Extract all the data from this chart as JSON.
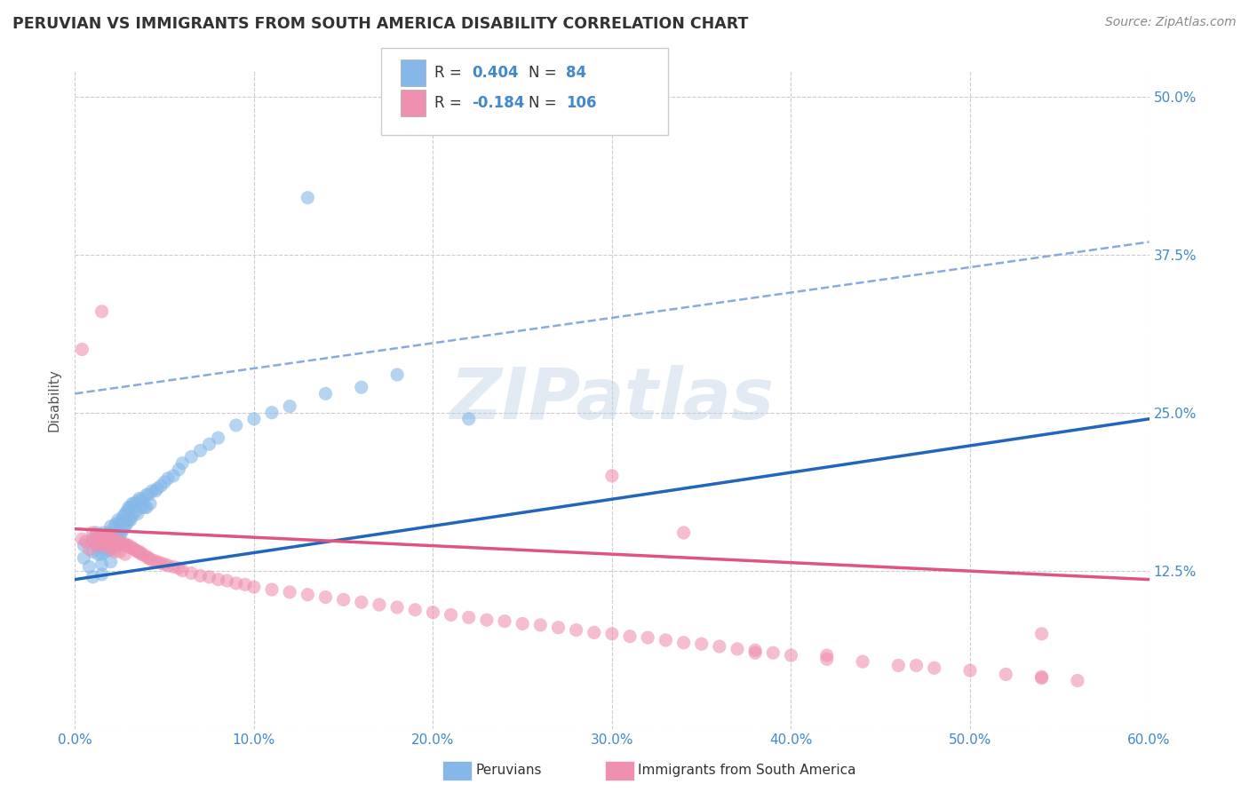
{
  "title": "PERUVIAN VS IMMIGRANTS FROM SOUTH AMERICA DISABILITY CORRELATION CHART",
  "source": "Source: ZipAtlas.com",
  "ylabel": "Disability",
  "x_min": 0.0,
  "x_max": 0.6,
  "y_min": 0.0,
  "y_max": 0.52,
  "yticks": [
    0.0,
    0.125,
    0.25,
    0.375,
    0.5
  ],
  "ytick_labels": [
    "",
    "12.5%",
    "25.0%",
    "37.5%",
    "50.0%"
  ],
  "xticks": [
    0.0,
    0.1,
    0.2,
    0.3,
    0.4,
    0.5,
    0.6
  ],
  "xtick_labels": [
    "0.0%",
    "10.0%",
    "20.0%",
    "30.0%",
    "40.0%",
    "50.0%",
    "60.0%"
  ],
  "legend_bottom": [
    {
      "label": "Peruvians",
      "color": "#85b8e8"
    },
    {
      "label": "Immigrants from South America",
      "color": "#f090b0"
    }
  ],
  "peruvian_x": [
    0.005,
    0.005,
    0.008,
    0.01,
    0.01,
    0.01,
    0.012,
    0.012,
    0.013,
    0.013,
    0.015,
    0.015,
    0.015,
    0.015,
    0.015,
    0.016,
    0.017,
    0.017,
    0.018,
    0.018,
    0.019,
    0.019,
    0.02,
    0.02,
    0.02,
    0.02,
    0.021,
    0.021,
    0.022,
    0.022,
    0.023,
    0.023,
    0.024,
    0.024,
    0.025,
    0.025,
    0.026,
    0.026,
    0.027,
    0.027,
    0.028,
    0.028,
    0.029,
    0.029,
    0.03,
    0.03,
    0.031,
    0.031,
    0.032,
    0.032,
    0.033,
    0.034,
    0.035,
    0.035,
    0.036,
    0.037,
    0.038,
    0.039,
    0.04,
    0.04,
    0.041,
    0.042,
    0.043,
    0.045,
    0.046,
    0.048,
    0.05,
    0.052,
    0.055,
    0.058,
    0.06,
    0.065,
    0.07,
    0.075,
    0.08,
    0.09,
    0.1,
    0.11,
    0.12,
    0.14,
    0.16,
    0.18,
    0.22,
    0.13
  ],
  "peruvian_y": [
    0.145,
    0.135,
    0.128,
    0.15,
    0.14,
    0.12,
    0.155,
    0.145,
    0.148,
    0.138,
    0.152,
    0.145,
    0.138,
    0.13,
    0.122,
    0.155,
    0.148,
    0.14,
    0.15,
    0.142,
    0.155,
    0.145,
    0.16,
    0.15,
    0.142,
    0.132,
    0.155,
    0.145,
    0.16,
    0.15,
    0.162,
    0.152,
    0.165,
    0.155,
    0.162,
    0.152,
    0.165,
    0.155,
    0.168,
    0.158,
    0.17,
    0.16,
    0.172,
    0.162,
    0.175,
    0.165,
    0.175,
    0.165,
    0.178,
    0.168,
    0.178,
    0.172,
    0.18,
    0.17,
    0.182,
    0.175,
    0.182,
    0.175,
    0.185,
    0.175,
    0.185,
    0.178,
    0.188,
    0.188,
    0.19,
    0.192,
    0.195,
    0.198,
    0.2,
    0.205,
    0.21,
    0.215,
    0.22,
    0.225,
    0.23,
    0.24,
    0.245,
    0.25,
    0.255,
    0.265,
    0.27,
    0.28,
    0.245,
    0.42
  ],
  "immigrant_x": [
    0.004,
    0.006,
    0.008,
    0.01,
    0.01,
    0.012,
    0.012,
    0.013,
    0.014,
    0.015,
    0.015,
    0.016,
    0.017,
    0.018,
    0.018,
    0.019,
    0.02,
    0.02,
    0.021,
    0.021,
    0.022,
    0.022,
    0.023,
    0.024,
    0.025,
    0.025,
    0.026,
    0.027,
    0.028,
    0.028,
    0.029,
    0.03,
    0.031,
    0.032,
    0.033,
    0.034,
    0.035,
    0.036,
    0.037,
    0.038,
    0.04,
    0.041,
    0.042,
    0.044,
    0.046,
    0.048,
    0.05,
    0.052,
    0.055,
    0.058,
    0.06,
    0.065,
    0.07,
    0.075,
    0.08,
    0.085,
    0.09,
    0.095,
    0.1,
    0.11,
    0.12,
    0.13,
    0.14,
    0.15,
    0.16,
    0.17,
    0.18,
    0.19,
    0.2,
    0.21,
    0.22,
    0.23,
    0.24,
    0.25,
    0.26,
    0.27,
    0.28,
    0.29,
    0.3,
    0.31,
    0.32,
    0.33,
    0.34,
    0.35,
    0.36,
    0.37,
    0.38,
    0.39,
    0.4,
    0.42,
    0.44,
    0.46,
    0.48,
    0.5,
    0.52,
    0.54,
    0.3,
    0.34,
    0.015,
    0.54,
    0.004,
    0.38,
    0.42,
    0.47,
    0.54,
    0.56
  ],
  "immigrant_y": [
    0.15,
    0.148,
    0.142,
    0.155,
    0.148,
    0.152,
    0.145,
    0.15,
    0.148,
    0.152,
    0.145,
    0.15,
    0.148,
    0.152,
    0.144,
    0.15,
    0.152,
    0.144,
    0.15,
    0.142,
    0.148,
    0.14,
    0.148,
    0.146,
    0.148,
    0.14,
    0.146,
    0.145,
    0.146,
    0.138,
    0.145,
    0.145,
    0.143,
    0.143,
    0.142,
    0.141,
    0.14,
    0.14,
    0.138,
    0.138,
    0.136,
    0.135,
    0.134,
    0.133,
    0.132,
    0.131,
    0.13,
    0.129,
    0.128,
    0.127,
    0.125,
    0.123,
    0.121,
    0.12,
    0.118,
    0.117,
    0.115,
    0.114,
    0.112,
    0.11,
    0.108,
    0.106,
    0.104,
    0.102,
    0.1,
    0.098,
    0.096,
    0.094,
    0.092,
    0.09,
    0.088,
    0.086,
    0.085,
    0.083,
    0.082,
    0.08,
    0.078,
    0.076,
    0.075,
    0.073,
    0.072,
    0.07,
    0.068,
    0.067,
    0.065,
    0.063,
    0.062,
    0.06,
    0.058,
    0.055,
    0.053,
    0.05,
    0.048,
    0.046,
    0.043,
    0.041,
    0.2,
    0.155,
    0.33,
    0.075,
    0.3,
    0.06,
    0.058,
    0.05,
    0.04,
    0.038
  ],
  "blue_trend": {
    "x_start": 0.0,
    "x_end": 0.6,
    "y_start": 0.118,
    "y_end": 0.245
  },
  "pink_trend": {
    "x_start": 0.0,
    "x_end": 0.6,
    "y_start": 0.158,
    "y_end": 0.118
  },
  "dash_trend": {
    "x_start": 0.0,
    "x_end": 0.6,
    "y_start": 0.265,
    "y_end": 0.385
  },
  "watermark_text": "ZIPatlas",
  "bg_color": "#ffffff",
  "scatter_blue": "#85b8e8",
  "scatter_pink": "#f090b0",
  "trend_blue_color": "#2266bb",
  "trend_pink_color": "#e05580",
  "trend_dash_color": "#88aadd",
  "grid_color": "#cccccc",
  "title_color": "#333333",
  "axis_label_color": "#555555",
  "tick_color": "#4488cc",
  "r_value_color": "#4488cc",
  "source_color": "#888888"
}
